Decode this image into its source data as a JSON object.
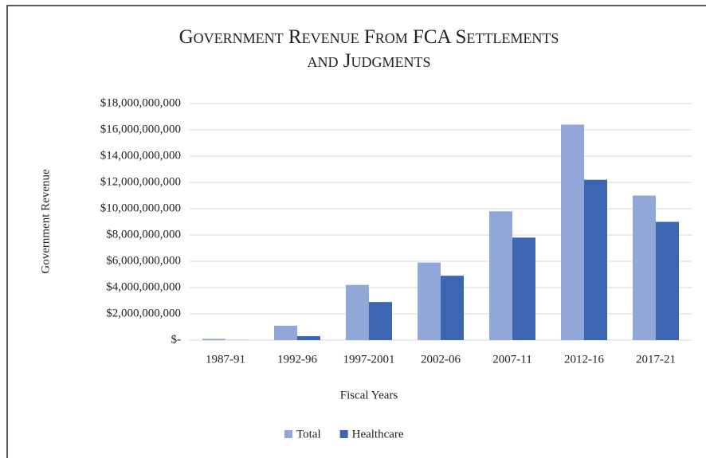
{
  "chart_data": {
    "type": "bar",
    "title": "Government Revenue From FCA Settlements and Judgments",
    "y_label": "Government Revenue",
    "x_label": "Fiscal Years",
    "categories": [
      "1987-91",
      "1992-96",
      "1997-2001",
      "2002-06",
      "2007-11",
      "2012-16",
      "2017-21"
    ],
    "series": [
      {
        "name": "Total",
        "color": "#91a7d8",
        "values": [
          100000000,
          1100000000,
          4200000000,
          5900000000,
          9800000000,
          16400000000,
          11000000000
        ]
      },
      {
        "name": "Healthcare",
        "color": "#3d66b1",
        "values": [
          10000000,
          300000000,
          2900000000,
          4900000000,
          7800000000,
          12200000000,
          9000000000
        ]
      }
    ],
    "ylim": [
      0,
      18000000000
    ],
    "yticks": [
      {
        "value": 0,
        "label": "$-"
      },
      {
        "value": 2000000000,
        "label": "$2,000,000,000"
      },
      {
        "value": 4000000000,
        "label": "$4,000,000,000"
      },
      {
        "value": 6000000000,
        "label": "$6,000,000,000"
      },
      {
        "value": 8000000000,
        "label": "$8,000,000,000"
      },
      {
        "value": 10000000000,
        "label": "$10,000,000,000"
      },
      {
        "value": 12000000000,
        "label": "$12,000,000,000"
      },
      {
        "value": 14000000000,
        "label": "$14,000,000,000"
      },
      {
        "value": 16000000000,
        "label": "$16,000,000,000"
      },
      {
        "value": 18000000000,
        "label": "$18,000,000,000"
      }
    ],
    "grid": true,
    "legend": "bottom"
  }
}
